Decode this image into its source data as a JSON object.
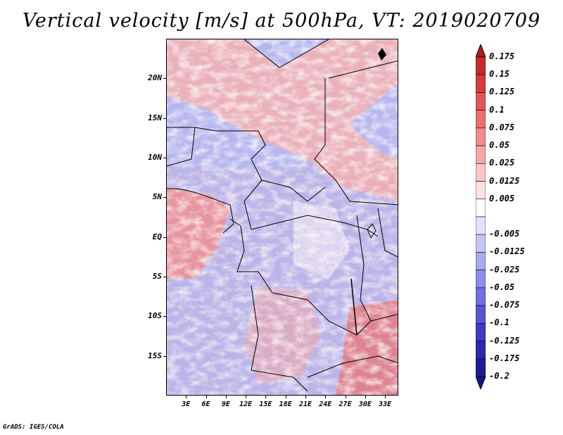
{
  "title": "Vertical velocity [m/s] at 500hPa, VT: 2019020709",
  "credit": "GrADS: IGES/COLA",
  "map": {
    "type": "shaded-contour-map",
    "variable": "vertical velocity at 500hPa",
    "lat_range": [
      -20,
      25
    ],
    "lon_range": [
      0,
      35
    ],
    "lat_labels": [
      {
        "text": "20N",
        "value": 20
      },
      {
        "text": "15N",
        "value": 15
      },
      {
        "text": "10N",
        "value": 10
      },
      {
        "text": "5N",
        "value": 5
      },
      {
        "text": "EQ",
        "value": 0
      },
      {
        "text": "5S",
        "value": -5
      },
      {
        "text": "10S",
        "value": -10
      },
      {
        "text": "15S",
        "value": -15
      }
    ],
    "lon_labels": [
      {
        "text": "3E",
        "value": 3
      },
      {
        "text": "6E",
        "value": 6
      },
      {
        "text": "9E",
        "value": 9
      },
      {
        "text": "12E",
        "value": 12
      },
      {
        "text": "15E",
        "value": 15
      },
      {
        "text": "18E",
        "value": 18
      },
      {
        "text": "21E",
        "value": 21
      },
      {
        "text": "24E",
        "value": 24
      },
      {
        "text": "27E",
        "value": 27
      },
      {
        "text": "30E",
        "value": 30
      },
      {
        "text": "33E",
        "value": 33
      }
    ]
  },
  "colorbar": {
    "levels": [
      {
        "label": "0.175",
        "color": "#b01c1c"
      },
      {
        "label": "0.15",
        "color": "#c52a2a"
      },
      {
        "label": "0.125",
        "color": "#d63c3c"
      },
      {
        "label": "0.1",
        "color": "#e25555"
      },
      {
        "label": "0.075",
        "color": "#eb7070"
      },
      {
        "label": "0.05",
        "color": "#f28c8c"
      },
      {
        "label": "0.025",
        "color": "#f7a9a9"
      },
      {
        "label": "0.0125",
        "color": "#fbc6c6"
      },
      {
        "label": "0.005",
        "color": "#fde2e2"
      },
      {
        "label": "",
        "color": "#ffffff"
      },
      {
        "label": "-0.005",
        "color": "#e2e2fd"
      },
      {
        "label": "-0.0125",
        "color": "#c6c6f7"
      },
      {
        "label": "-0.025",
        "color": "#a9a9f1"
      },
      {
        "label": "-0.05",
        "color": "#8c8ceb"
      },
      {
        "label": "-0.075",
        "color": "#7070e2"
      },
      {
        "label": "-0.1",
        "color": "#5555d6"
      },
      {
        "label": "-0.125",
        "color": "#3c3cc5"
      },
      {
        "label": "-0.175",
        "color": "#2a2ab0"
      },
      {
        "label": "-0.2",
        "color": "#1c1c96"
      },
      {
        "label": "",
        "color": "#14148a"
      }
    ]
  }
}
